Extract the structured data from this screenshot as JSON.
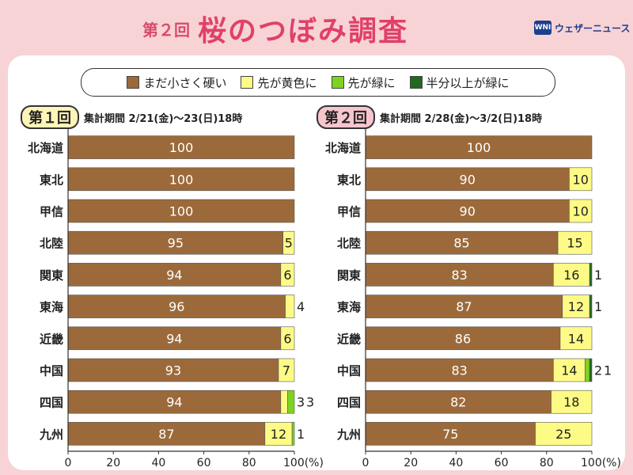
{
  "header": {
    "round": "第２回",
    "title": "桜のつぼみ調査",
    "logo_text": "ウェザーニュース",
    "logo_mark": "WNI"
  },
  "legend": [
    {
      "label": "まだ小さく硬い",
      "color": "#9c6a3a"
    },
    {
      "label": "先が黄色に",
      "color": "#fdfb86"
    },
    {
      "label": "先が緑に",
      "color": "#7ed321"
    },
    {
      "label": "半分以上が緑に",
      "color": "#1e6b1e"
    }
  ],
  "chart_data": [
    {
      "type": "bar",
      "orientation": "horizontal",
      "stacked": true,
      "badge": "第１回",
      "period": "集計期間 2/21(金)～23(日)18時",
      "categories": [
        "北海道",
        "東北",
        "甲信",
        "北陸",
        "関東",
        "東海",
        "近畿",
        "中国",
        "四国",
        "九州"
      ],
      "series": [
        {
          "name": "まだ小さく硬い",
          "values": [
            100,
            100,
            100,
            95,
            94,
            96,
            94,
            93,
            94,
            87
          ]
        },
        {
          "name": "先が黄色に",
          "values": [
            0,
            0,
            0,
            5,
            6,
            4,
            6,
            7,
            3,
            12
          ]
        },
        {
          "name": "先が緑に",
          "values": [
            0,
            0,
            0,
            0,
            0,
            0,
            0,
            0,
            3,
            1
          ]
        },
        {
          "name": "半分以上が緑に",
          "values": [
            0,
            0,
            0,
            0,
            0,
            0,
            0,
            0,
            0,
            0
          ]
        }
      ],
      "xlim": [
        0,
        100
      ],
      "xticks": [
        "0",
        "20",
        "40",
        "60",
        "80",
        "100(%)"
      ]
    },
    {
      "type": "bar",
      "orientation": "horizontal",
      "stacked": true,
      "badge": "第２回",
      "period": "集計期間 2/28(金)～3/2(日)18時",
      "categories": [
        "北海道",
        "東北",
        "甲信",
        "北陸",
        "関東",
        "東海",
        "近畿",
        "中国",
        "四国",
        "九州"
      ],
      "series": [
        {
          "name": "まだ小さく硬い",
          "values": [
            100,
            90,
            90,
            85,
            83,
            87,
            86,
            83,
            82,
            75
          ]
        },
        {
          "name": "先が黄色に",
          "values": [
            0,
            10,
            10,
            15,
            16,
            12,
            14,
            14,
            18,
            25
          ]
        },
        {
          "name": "先が緑に",
          "values": [
            0,
            0,
            0,
            0,
            0,
            0,
            0,
            2,
            0,
            0
          ]
        },
        {
          "name": "半分以上が緑に",
          "values": [
            0,
            0,
            0,
            0,
            1,
            1,
            0,
            1,
            0,
            0
          ]
        }
      ],
      "xlim": [
        0,
        100
      ],
      "xticks": [
        "0",
        "20",
        "40",
        "60",
        "80",
        "100(%)"
      ]
    }
  ]
}
